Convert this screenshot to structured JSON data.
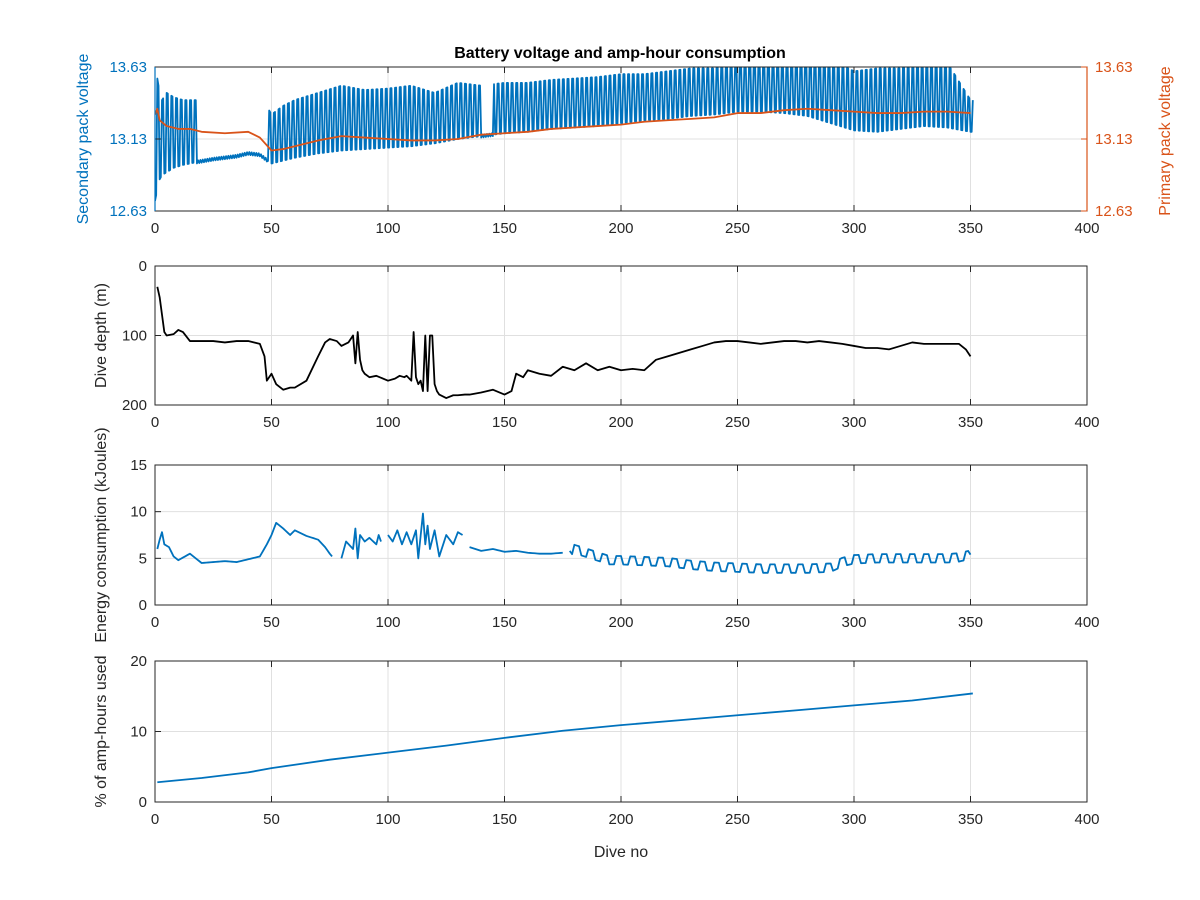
{
  "figure": {
    "title": "Battery voltage and amp-hour consumption",
    "colors": {
      "blue": "#0072BD",
      "orange": "#D95319",
      "black": "#000000",
      "grid": "#e0e0e0"
    }
  },
  "chart_data": [
    {
      "type": "line",
      "title": "Battery voltage and amp-hour consumption",
      "xlabel": "",
      "ylabel": "Secondary pack voltage",
      "ylabel_right": "Primary pack voltage",
      "xlim": [
        0,
        400
      ],
      "ylim": [
        12.63,
        13.63
      ],
      "ylim_right": [
        12.63,
        13.63
      ],
      "xticks": [
        0,
        50,
        100,
        150,
        200,
        250,
        300,
        350,
        400
      ],
      "yticks": [
        12.63,
        13.13,
        13.63
      ],
      "yticks_right": [
        12.63,
        13.13,
        13.63
      ],
      "grid": true,
      "series": [
        {
          "axis": "left",
          "color": "#0072BD",
          "x": [
            0,
            1,
            2,
            3,
            5,
            8,
            12,
            18,
            25,
            30,
            35,
            40,
            45,
            50,
            55,
            60,
            70,
            80,
            90,
            100,
            110,
            120,
            130,
            140,
            150,
            160,
            170,
            180,
            190,
            200,
            210,
            220,
            230,
            240,
            250,
            260,
            270,
            280,
            290,
            300,
            310,
            320,
            330,
            340,
            350
          ],
          "baseline": [
            12.7,
            12.78,
            12.85,
            12.88,
            12.9,
            12.93,
            12.95,
            12.97,
            12.99,
            13.0,
            13.01,
            13.03,
            13.02,
            12.96,
            12.98,
            13.0,
            13.03,
            13.05,
            13.06,
            13.07,
            13.08,
            13.1,
            13.13,
            13.15,
            13.17,
            13.18,
            13.2,
            13.21,
            13.22,
            13.24,
            13.26,
            13.27,
            13.29,
            13.3,
            13.32,
            13.32,
            13.31,
            13.29,
            13.24,
            13.19,
            13.18,
            13.2,
            13.22,
            13.21,
            13.18
          ],
          "peak": [
            13.2,
            13.55,
            13.45,
            13.4,
            13.45,
            13.42,
            13.4,
            13.4,
            13.45,
            13.4,
            13.42,
            13.45,
            13.44,
            13.3,
            13.36,
            13.4,
            13.45,
            13.5,
            13.47,
            13.48,
            13.5,
            13.45,
            13.52,
            13.5,
            13.52,
            13.52,
            13.54,
            13.55,
            13.56,
            13.58,
            13.58,
            13.6,
            13.62,
            13.62,
            13.68,
            13.68,
            13.66,
            13.7,
            13.68,
            13.6,
            13.62,
            13.62,
            13.66,
            13.66,
            13.4
          ],
          "dive_range": [
            0,
            351
          ],
          "flat_segments": [
            [
              18,
              48
            ],
            [
              140,
              145
            ]
          ]
        },
        {
          "axis": "right",
          "color": "#D95319",
          "x": [
            0,
            1,
            2,
            5,
            10,
            15,
            20,
            30,
            40,
            45,
            50,
            55,
            60,
            70,
            80,
            90,
            100,
            110,
            120,
            130,
            140,
            150,
            160,
            170,
            180,
            190,
            200,
            210,
            220,
            230,
            240,
            250,
            260,
            270,
            280,
            290,
            300,
            310,
            320,
            330,
            340,
            350
          ],
          "y": [
            13.3,
            13.34,
            13.26,
            13.22,
            13.2,
            13.2,
            13.18,
            13.17,
            13.18,
            13.14,
            13.05,
            13.06,
            13.08,
            13.12,
            13.15,
            13.14,
            13.13,
            13.12,
            13.12,
            13.13,
            13.16,
            13.17,
            13.18,
            13.2,
            13.21,
            13.22,
            13.23,
            13.25,
            13.26,
            13.27,
            13.28,
            13.31,
            13.31,
            13.33,
            13.34,
            13.33,
            13.32,
            13.31,
            13.31,
            13.32,
            13.32,
            13.31
          ]
        }
      ]
    },
    {
      "type": "line",
      "xlabel": "",
      "ylabel": "Dive depth (m)",
      "xlim": [
        0,
        400
      ],
      "ylim": [
        200,
        0
      ],
      "y_reversed": true,
      "xticks": [
        0,
        50,
        100,
        150,
        200,
        250,
        300,
        350,
        400
      ],
      "yticks": [
        0,
        100,
        200
      ],
      "grid": true,
      "series": [
        {
          "color": "#000000",
          "x": [
            1,
            2,
            3,
            4,
            5,
            8,
            10,
            12,
            15,
            20,
            25,
            30,
            35,
            40,
            45,
            47,
            48,
            50,
            52,
            55,
            58,
            60,
            65,
            70,
            73,
            75,
            78,
            80,
            83,
            85,
            86,
            87,
            88,
            89,
            90,
            92,
            95,
            100,
            103,
            105,
            107,
            108,
            110,
            111,
            112,
            113,
            114,
            115,
            116,
            117,
            118,
            119,
            120,
            121,
            122,
            125,
            128,
            130,
            133,
            135,
            140,
            145,
            150,
            153,
            155,
            158,
            160,
            165,
            170,
            175,
            180,
            185,
            190,
            195,
            200,
            205,
            210,
            215,
            220,
            225,
            230,
            235,
            240,
            245,
            250,
            255,
            260,
            265,
            270,
            275,
            280,
            285,
            290,
            295,
            300,
            305,
            310,
            315,
            320,
            325,
            330,
            335,
            340,
            345,
            348,
            350
          ],
          "y": [
            30,
            45,
            70,
            95,
            100,
            98,
            92,
            95,
            108,
            108,
            108,
            110,
            108,
            108,
            112,
            130,
            165,
            155,
            170,
            178,
            175,
            175,
            165,
            130,
            110,
            105,
            108,
            115,
            110,
            100,
            140,
            95,
            135,
            150,
            155,
            160,
            158,
            165,
            162,
            158,
            160,
            158,
            165,
            95,
            160,
            170,
            165,
            180,
            100,
            180,
            100,
            100,
            170,
            180,
            185,
            190,
            186,
            186,
            185,
            185,
            182,
            178,
            185,
            180,
            155,
            160,
            150,
            155,
            158,
            145,
            150,
            140,
            150,
            145,
            150,
            148,
            150,
            135,
            130,
            125,
            120,
            115,
            110,
            108,
            108,
            110,
            112,
            110,
            108,
            108,
            110,
            108,
            110,
            112,
            115,
            118,
            118,
            120,
            115,
            110,
            112,
            112,
            112,
            112,
            120,
            130
          ]
        }
      ]
    },
    {
      "type": "line",
      "xlabel": "",
      "ylabel": "Energy consumption (kJoules)",
      "xlim": [
        0,
        400
      ],
      "ylim": [
        0,
        15
      ],
      "xticks": [
        0,
        50,
        100,
        150,
        200,
        250,
        300,
        350,
        400
      ],
      "yticks": [
        0,
        5,
        10,
        15
      ],
      "grid": true,
      "series": [
        {
          "color": "#0072BD",
          "segments": [
            {
              "x": [
                1,
                2,
                3,
                4,
                6,
                8,
                10,
                15,
                20,
                25,
                30,
                35,
                40,
                45,
                48,
                50,
                52,
                55,
                58,
                60,
                65,
                70,
                73,
                75,
                76
              ],
              "y": [
                6.0,
                7.0,
                7.8,
                6.5,
                6.2,
                5.2,
                4.8,
                5.5,
                4.5,
                4.6,
                4.7,
                4.6,
                4.9,
                5.2,
                6.5,
                7.5,
                8.8,
                8.2,
                7.5,
                8.0,
                7.4,
                7.0,
                6.2,
                5.5,
                5.2
              ]
            },
            {
              "x": [
                80,
                82,
                85,
                86,
                87,
                88,
                90,
                92,
                95,
                96,
                97
              ],
              "y": [
                5.0,
                6.8,
                6.0,
                8.2,
                5.0,
                7.5,
                6.8,
                7.2,
                6.5,
                7.5,
                6.8
              ]
            },
            {
              "x": [
                100,
                102,
                104,
                106,
                108,
                110,
                112,
                113,
                115,
                116,
                117,
                118,
                120,
                122,
                125,
                128,
                130,
                132
              ],
              "y": [
                7.5,
                6.8,
                8.0,
                6.5,
                7.8,
                6.5,
                8.0,
                5.0,
                9.8,
                6.5,
                8.5,
                6.0,
                8.0,
                5.2,
                7.5,
                6.5,
                7.8,
                7.5
              ]
            },
            {
              "x": [
                135,
                140,
                145,
                150,
                155,
                160,
                165,
                170,
                175
              ],
              "y": [
                6.2,
                5.8,
                6.0,
                5.7,
                5.8,
                5.6,
                5.5,
                5.5,
                5.6
              ]
            },
            {
              "x": [
                178,
                180,
                185,
                190,
                195,
                200,
                210,
                220,
                230,
                240,
                250,
                260,
                270,
                280,
                290,
                295,
                300,
                310,
                320,
                330,
                340,
                345,
                350
              ],
              "y": [
                5.8,
                6.0,
                5.6,
                5.2,
                4.8,
                4.8,
                4.7,
                4.6,
                4.3,
                4.1,
                4.0,
                3.9,
                3.9,
                3.9,
                4.0,
                4.6,
                4.9,
                5.0,
                5.0,
                5.0,
                5.0,
                5.1,
                5.4
              ]
            }
          ]
        }
      ]
    },
    {
      "type": "line",
      "xlabel": "Dive no",
      "ylabel": "% of amp-hours used",
      "xlim": [
        0,
        400
      ],
      "ylim": [
        0,
        20
      ],
      "xticks": [
        0,
        50,
        100,
        150,
        200,
        250,
        300,
        350,
        400
      ],
      "yticks": [
        0,
        10,
        20
      ],
      "grid": true,
      "series": [
        {
          "color": "#0072BD",
          "x": [
            1,
            20,
            40,
            50,
            75,
            100,
            125,
            150,
            175,
            200,
            225,
            250,
            275,
            300,
            325,
            351
          ],
          "y": [
            2.8,
            3.4,
            4.2,
            4.8,
            6.0,
            7.0,
            8.0,
            9.1,
            10.1,
            10.9,
            11.6,
            12.3,
            13.0,
            13.7,
            14.4,
            15.4
          ]
        }
      ]
    }
  ]
}
